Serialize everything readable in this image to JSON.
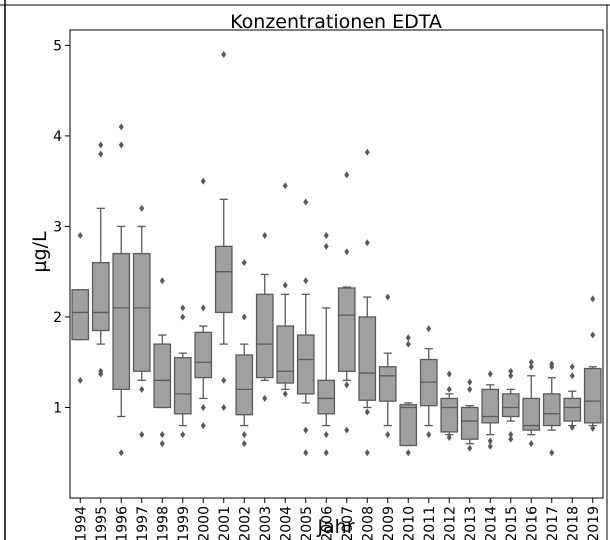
{
  "chart_data": {
    "type": "box",
    "title": "Konzentrationen EDTA",
    "y_label": "µg/L",
    "x_label": "Jahr",
    "ylim": [
      0,
      5.17
    ],
    "yticks": [
      1,
      2,
      3,
      4,
      5
    ],
    "color": "#a0a0a0",
    "categories": [
      "1994",
      "1995",
      "1996",
      "1997",
      "1998",
      "1999",
      "2000",
      "2001",
      "2002",
      "2003",
      "2004",
      "2005",
      "2006",
      "2007",
      "2008",
      "2009",
      "2010",
      "2011",
      "2012",
      "2013",
      "2014",
      "2015",
      "2016",
      "2017",
      "2018",
      "2019"
    ],
    "boxes": [
      {
        "whislo": 1.75,
        "q1": 1.75,
        "med": 2.05,
        "q3": 2.3,
        "whishi": 2.3,
        "fliers": [
          2.9,
          1.3
        ]
      },
      {
        "whislo": 1.7,
        "q1": 1.85,
        "med": 2.05,
        "q3": 2.6,
        "whishi": 3.2,
        "fliers": [
          3.9,
          3.8,
          1.4,
          1.37
        ]
      },
      {
        "whislo": 0.9,
        "q1": 1.2,
        "med": 2.1,
        "q3": 2.7,
        "whishi": 3.0,
        "fliers": [
          4.1,
          3.9,
          0.5
        ]
      },
      {
        "whislo": 1.3,
        "q1": 1.4,
        "med": 2.1,
        "q3": 2.7,
        "whishi": 3.0,
        "fliers": [
          3.2,
          1.2,
          0.7
        ]
      },
      {
        "whislo": 1.0,
        "q1": 1.0,
        "med": 1.3,
        "q3": 1.7,
        "whishi": 1.8,
        "fliers": [
          2.4,
          0.7,
          0.6
        ]
      },
      {
        "whislo": 0.8,
        "q1": 0.93,
        "med": 1.15,
        "q3": 1.55,
        "whishi": 1.6,
        "fliers": [
          2.1,
          2.0,
          0.7
        ]
      },
      {
        "whislo": 1.1,
        "q1": 1.33,
        "med": 1.5,
        "q3": 1.83,
        "whishi": 1.9,
        "fliers": [
          3.5,
          2.1,
          1.0,
          0.8
        ]
      },
      {
        "whislo": 1.7,
        "q1": 2.05,
        "med": 2.5,
        "q3": 2.78,
        "whishi": 3.3,
        "fliers": [
          4.9,
          1.3,
          1.0
        ]
      },
      {
        "whislo": 0.8,
        "q1": 0.92,
        "med": 1.2,
        "q3": 1.58,
        "whishi": 1.7,
        "fliers": [
          2.6,
          2.0,
          0.7,
          0.6
        ]
      },
      {
        "whislo": 1.3,
        "q1": 1.33,
        "med": 1.7,
        "q3": 2.25,
        "whishi": 2.47,
        "fliers": [
          2.9,
          1.1
        ]
      },
      {
        "whislo": 1.2,
        "q1": 1.27,
        "med": 1.4,
        "q3": 1.9,
        "whishi": 2.25,
        "fliers": [
          3.45,
          2.35,
          1.15
        ]
      },
      {
        "whislo": 1.05,
        "q1": 1.15,
        "med": 1.53,
        "q3": 1.8,
        "whishi": 2.25,
        "fliers": [
          3.27,
          2.4,
          0.75,
          0.5
        ]
      },
      {
        "whislo": 0.8,
        "q1": 0.93,
        "med": 1.1,
        "q3": 1.3,
        "whishi": 2.1,
        "fliers": [
          2.9,
          2.78,
          0.7,
          0.5
        ]
      },
      {
        "whislo": 1.3,
        "q1": 1.4,
        "med": 2.02,
        "q3": 2.32,
        "whishi": 2.33,
        "fliers": [
          3.57,
          2.72,
          1.25,
          0.75
        ]
      },
      {
        "whislo": 1.0,
        "q1": 1.08,
        "med": 1.38,
        "q3": 2.0,
        "whishi": 2.22,
        "fliers": [
          3.82,
          2.82,
          0.95,
          0.5
        ]
      },
      {
        "whislo": 0.8,
        "q1": 1.07,
        "med": 1.35,
        "q3": 1.45,
        "whishi": 1.6,
        "fliers": [
          2.22,
          0.7
        ]
      },
      {
        "whislo": 0.58,
        "q1": 0.58,
        "med": 1.0,
        "q3": 1.03,
        "whishi": 1.05,
        "fliers": [
          1.77,
          1.7,
          0.5
        ]
      },
      {
        "whislo": 0.8,
        "q1": 1.02,
        "med": 1.28,
        "q3": 1.53,
        "whishi": 1.65,
        "fliers": [
          1.87,
          0.7
        ]
      },
      {
        "whislo": 0.7,
        "q1": 0.73,
        "med": 1.0,
        "q3": 1.1,
        "whishi": 1.15,
        "fliers": [
          1.37,
          1.2,
          0.67
        ]
      },
      {
        "whislo": 0.6,
        "q1": 0.65,
        "med": 0.85,
        "q3": 1.0,
        "whishi": 1.02,
        "fliers": [
          1.28,
          1.2,
          0.55
        ]
      },
      {
        "whislo": 0.7,
        "q1": 0.83,
        "med": 0.9,
        "q3": 1.2,
        "whishi": 1.25,
        "fliers": [
          1.37,
          0.63,
          0.57
        ]
      },
      {
        "whislo": 0.85,
        "q1": 0.9,
        "med": 1.0,
        "q3": 1.15,
        "whishi": 1.2,
        "fliers": [
          1.4,
          1.35,
          0.7,
          0.65
        ]
      },
      {
        "whislo": 0.7,
        "q1": 0.75,
        "med": 0.8,
        "q3": 1.1,
        "whishi": 1.35,
        "fliers": [
          1.5,
          1.45,
          0.6
        ]
      },
      {
        "whislo": 0.75,
        "q1": 0.8,
        "med": 0.93,
        "q3": 1.15,
        "whishi": 1.33,
        "fliers": [
          1.48,
          1.45,
          0.5
        ]
      },
      {
        "whislo": 0.8,
        "q1": 0.85,
        "med": 1.0,
        "q3": 1.1,
        "whishi": 1.18,
        "fliers": [
          1.45,
          1.35,
          0.78
        ]
      },
      {
        "whislo": 0.8,
        "q1": 0.83,
        "med": 1.07,
        "q3": 1.43,
        "whishi": 1.45,
        "fliers": [
          2.2,
          1.8,
          0.77
        ]
      }
    ]
  }
}
